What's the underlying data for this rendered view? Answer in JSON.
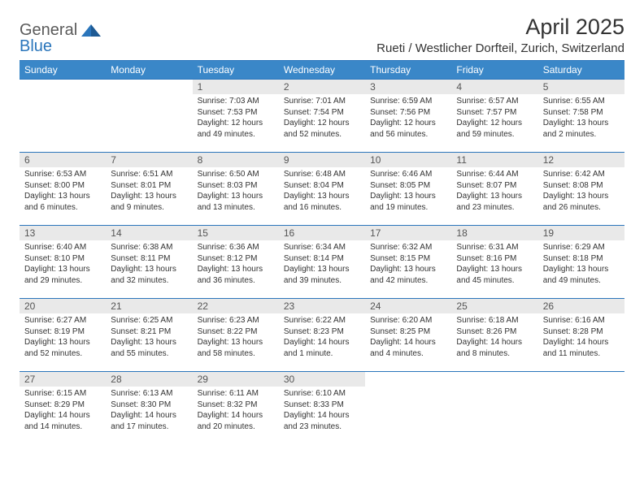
{
  "brand": {
    "general": "General",
    "blue": "Blue"
  },
  "title": "April 2025",
  "subtitle": "Rueti / Westlicher Dorfteil, Zurich, Switzerland",
  "header_bg": "#3a87c8",
  "rule_color": "#2a75bb",
  "daynum_bg": "#e9e9e9",
  "text_color": "#333333",
  "font_family": "Arial",
  "title_fontsize": 27,
  "subtitle_fontsize": 15,
  "header_fontsize": 12,
  "daynum_fontsize": 12,
  "body_fontsize": 10,
  "weekdays": [
    "Sunday",
    "Monday",
    "Tuesday",
    "Wednesday",
    "Thursday",
    "Friday",
    "Saturday"
  ],
  "weeks": [
    [
      {
        "n": "",
        "sunrise": "",
        "sunset": "",
        "daylight": ""
      },
      {
        "n": "",
        "sunrise": "",
        "sunset": "",
        "daylight": ""
      },
      {
        "n": "1",
        "sunrise": "7:03 AM",
        "sunset": "7:53 PM",
        "daylight": "12 hours and 49 minutes."
      },
      {
        "n": "2",
        "sunrise": "7:01 AM",
        "sunset": "7:54 PM",
        "daylight": "12 hours and 52 minutes."
      },
      {
        "n": "3",
        "sunrise": "6:59 AM",
        "sunset": "7:56 PM",
        "daylight": "12 hours and 56 minutes."
      },
      {
        "n": "4",
        "sunrise": "6:57 AM",
        "sunset": "7:57 PM",
        "daylight": "12 hours and 59 minutes."
      },
      {
        "n": "5",
        "sunrise": "6:55 AM",
        "sunset": "7:58 PM",
        "daylight": "13 hours and 2 minutes."
      }
    ],
    [
      {
        "n": "6",
        "sunrise": "6:53 AM",
        "sunset": "8:00 PM",
        "daylight": "13 hours and 6 minutes."
      },
      {
        "n": "7",
        "sunrise": "6:51 AM",
        "sunset": "8:01 PM",
        "daylight": "13 hours and 9 minutes."
      },
      {
        "n": "8",
        "sunrise": "6:50 AM",
        "sunset": "8:03 PM",
        "daylight": "13 hours and 13 minutes."
      },
      {
        "n": "9",
        "sunrise": "6:48 AM",
        "sunset": "8:04 PM",
        "daylight": "13 hours and 16 minutes."
      },
      {
        "n": "10",
        "sunrise": "6:46 AM",
        "sunset": "8:05 PM",
        "daylight": "13 hours and 19 minutes."
      },
      {
        "n": "11",
        "sunrise": "6:44 AM",
        "sunset": "8:07 PM",
        "daylight": "13 hours and 23 minutes."
      },
      {
        "n": "12",
        "sunrise": "6:42 AM",
        "sunset": "8:08 PM",
        "daylight": "13 hours and 26 minutes."
      }
    ],
    [
      {
        "n": "13",
        "sunrise": "6:40 AM",
        "sunset": "8:10 PM",
        "daylight": "13 hours and 29 minutes."
      },
      {
        "n": "14",
        "sunrise": "6:38 AM",
        "sunset": "8:11 PM",
        "daylight": "13 hours and 32 minutes."
      },
      {
        "n": "15",
        "sunrise": "6:36 AM",
        "sunset": "8:12 PM",
        "daylight": "13 hours and 36 minutes."
      },
      {
        "n": "16",
        "sunrise": "6:34 AM",
        "sunset": "8:14 PM",
        "daylight": "13 hours and 39 minutes."
      },
      {
        "n": "17",
        "sunrise": "6:32 AM",
        "sunset": "8:15 PM",
        "daylight": "13 hours and 42 minutes."
      },
      {
        "n": "18",
        "sunrise": "6:31 AM",
        "sunset": "8:16 PM",
        "daylight": "13 hours and 45 minutes."
      },
      {
        "n": "19",
        "sunrise": "6:29 AM",
        "sunset": "8:18 PM",
        "daylight": "13 hours and 49 minutes."
      }
    ],
    [
      {
        "n": "20",
        "sunrise": "6:27 AM",
        "sunset": "8:19 PM",
        "daylight": "13 hours and 52 minutes."
      },
      {
        "n": "21",
        "sunrise": "6:25 AM",
        "sunset": "8:21 PM",
        "daylight": "13 hours and 55 minutes."
      },
      {
        "n": "22",
        "sunrise": "6:23 AM",
        "sunset": "8:22 PM",
        "daylight": "13 hours and 58 minutes."
      },
      {
        "n": "23",
        "sunrise": "6:22 AM",
        "sunset": "8:23 PM",
        "daylight": "14 hours and 1 minute."
      },
      {
        "n": "24",
        "sunrise": "6:20 AM",
        "sunset": "8:25 PM",
        "daylight": "14 hours and 4 minutes."
      },
      {
        "n": "25",
        "sunrise": "6:18 AM",
        "sunset": "8:26 PM",
        "daylight": "14 hours and 8 minutes."
      },
      {
        "n": "26",
        "sunrise": "6:16 AM",
        "sunset": "8:28 PM",
        "daylight": "14 hours and 11 minutes."
      }
    ],
    [
      {
        "n": "27",
        "sunrise": "6:15 AM",
        "sunset": "8:29 PM",
        "daylight": "14 hours and 14 minutes."
      },
      {
        "n": "28",
        "sunrise": "6:13 AM",
        "sunset": "8:30 PM",
        "daylight": "14 hours and 17 minutes."
      },
      {
        "n": "29",
        "sunrise": "6:11 AM",
        "sunset": "8:32 PM",
        "daylight": "14 hours and 20 minutes."
      },
      {
        "n": "30",
        "sunrise": "6:10 AM",
        "sunset": "8:33 PM",
        "daylight": "14 hours and 23 minutes."
      },
      {
        "n": "",
        "sunrise": "",
        "sunset": "",
        "daylight": ""
      },
      {
        "n": "",
        "sunrise": "",
        "sunset": "",
        "daylight": ""
      },
      {
        "n": "",
        "sunrise": "",
        "sunset": "",
        "daylight": ""
      }
    ]
  ],
  "labels": {
    "sunrise": "Sunrise:",
    "sunset": "Sunset:",
    "daylight": "Daylight:"
  }
}
